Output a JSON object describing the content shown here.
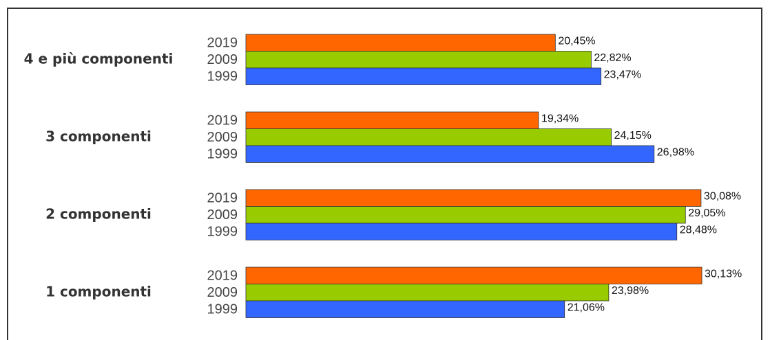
{
  "chart_data": {
    "type": "hbar",
    "categories": [
      "4 e più componenti",
      "3 componenti",
      "2 componenti",
      "1 componenti"
    ],
    "series": [
      {
        "name": "2019",
        "color": "#ff6600",
        "values": [
          20.45,
          19.34,
          30.08,
          30.13
        ],
        "value_labels": [
          "20,45%",
          "19,34%",
          "30,08%",
          "30,13%"
        ]
      },
      {
        "name": "2009",
        "color": "#99cc00",
        "values": [
          22.82,
          24.15,
          29.05,
          23.98
        ],
        "value_labels": [
          "22,82%",
          "24,15%",
          "29,05%",
          "23,98%"
        ]
      },
      {
        "name": "1999",
        "color": "#3366ff",
        "values": [
          23.47,
          26.98,
          28.48,
          21.06
        ],
        "value_labels": [
          "23,47%",
          "26,98%",
          "28,48%",
          "21,06%"
        ]
      }
    ]
  }
}
